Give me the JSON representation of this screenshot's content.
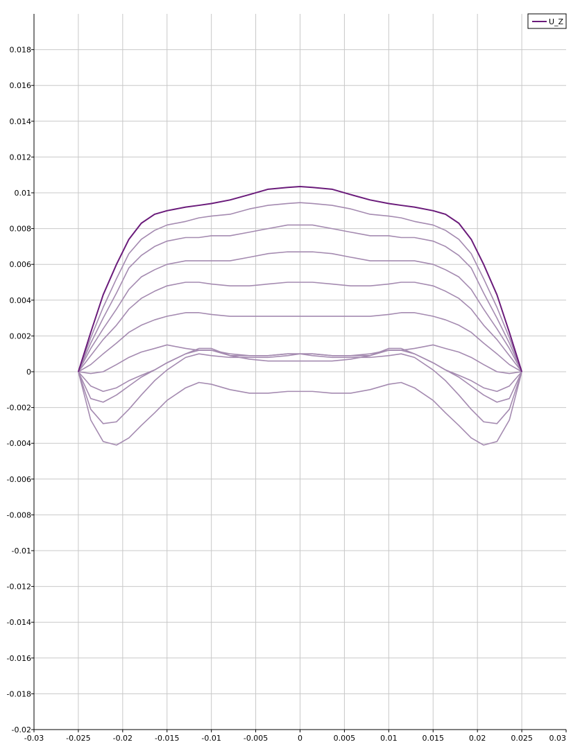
{
  "chart_data": {
    "type": "line",
    "title": "",
    "xlabel": "",
    "ylabel": "",
    "xlim": [
      -0.03,
      0.03
    ],
    "ylim": [
      -0.02,
      0.02
    ],
    "grid": true,
    "legend_position": "top-right",
    "legend": [
      "U_Z"
    ],
    "x_ticks": [
      "-0.03",
      "-0.025",
      "-0.02",
      "-0.015",
      "-0.01",
      "-0.005",
      "0",
      "0.005",
      "0.01",
      "0.015",
      "0.02",
      "0.025",
      "0.03"
    ],
    "y_ticks": [
      "-0.02",
      "-0.018",
      "-0.016",
      "-0.014",
      "-0.012",
      "-0.01",
      "-0.008",
      "-0.006",
      "-0.004",
      "-0.002",
      "0",
      "0.002",
      "0.004",
      "0.006",
      "0.008",
      "0.01",
      "0.012",
      "0.014",
      "0.016",
      "0.018"
    ],
    "x": [
      -0.025,
      -0.0236,
      -0.0222,
      -0.0207,
      -0.0193,
      -0.0179,
      -0.0164,
      -0.015,
      -0.0129,
      -0.0114,
      -0.01,
      -0.0079,
      -0.0057,
      -0.0036,
      -0.0014,
      0,
      0.0014,
      0.0036,
      0.0057,
      0.0079,
      0.01,
      0.0114,
      0.0129,
      0.015,
      0.0164,
      0.0179,
      0.0193,
      0.0207,
      0.0222,
      0.0236,
      0.025
    ],
    "series": [
      {
        "name": "U_Z",
        "color": "#6a1b7a",
        "highlight": true,
        "values": [
          0,
          0.0022,
          0.0043,
          0.006,
          0.0074,
          0.0083,
          0.0088,
          0.009,
          0.0092,
          0.0093,
          0.0094,
          0.0096,
          0.0099,
          0.0102,
          0.0103,
          0.01035,
          0.0103,
          0.0102,
          0.0099,
          0.0096,
          0.0094,
          0.0093,
          0.0092,
          0.009,
          0.0088,
          0.0083,
          0.0074,
          0.006,
          0.0043,
          0.0022,
          0
        ]
      },
      {
        "color": "#a48ab0",
        "values": [
          0,
          0.0019,
          0.0036,
          0.0052,
          0.0066,
          0.0074,
          0.0079,
          0.0082,
          0.0084,
          0.0086,
          0.0087,
          0.0088,
          0.0091,
          0.0093,
          0.0094,
          0.00945,
          0.0094,
          0.0093,
          0.0091,
          0.0088,
          0.0087,
          0.0086,
          0.0084,
          0.0082,
          0.0079,
          0.0074,
          0.0066,
          0.0052,
          0.0036,
          0.0019,
          0
        ]
      },
      {
        "color": "#a48ab0",
        "values": [
          0,
          0.0016,
          0.003,
          0.0044,
          0.0058,
          0.0065,
          0.007,
          0.0073,
          0.0075,
          0.0075,
          0.0076,
          0.0076,
          0.0078,
          0.008,
          0.0082,
          0.0082,
          0.0082,
          0.008,
          0.0078,
          0.0076,
          0.0076,
          0.0075,
          0.0075,
          0.0073,
          0.007,
          0.0065,
          0.0058,
          0.0044,
          0.003,
          0.0016,
          0
        ]
      },
      {
        "color": "#a48ab0",
        "values": [
          0,
          0.0013,
          0.0024,
          0.0035,
          0.0046,
          0.0053,
          0.0057,
          0.006,
          0.0062,
          0.0062,
          0.0062,
          0.0062,
          0.0064,
          0.0066,
          0.0067,
          0.0067,
          0.0067,
          0.0066,
          0.0064,
          0.0062,
          0.0062,
          0.0062,
          0.0062,
          0.006,
          0.0057,
          0.0053,
          0.0046,
          0.0035,
          0.0024,
          0.0013,
          0
        ]
      },
      {
        "color": "#a48ab0",
        "values": [
          0,
          0.0009,
          0.0018,
          0.0026,
          0.0035,
          0.0041,
          0.0045,
          0.0048,
          0.005,
          0.005,
          0.0049,
          0.0048,
          0.0048,
          0.0049,
          0.005,
          0.005,
          0.005,
          0.0049,
          0.0048,
          0.0048,
          0.0049,
          0.005,
          0.005,
          0.0048,
          0.0045,
          0.0041,
          0.0035,
          0.0026,
          0.0018,
          0.0009,
          0
        ]
      },
      {
        "color": "#a48ab0",
        "values": [
          0,
          0.0004,
          0.001,
          0.0016,
          0.0022,
          0.0026,
          0.0029,
          0.0031,
          0.0033,
          0.0033,
          0.0032,
          0.0031,
          0.0031,
          0.0031,
          0.0031,
          0.0031,
          0.0031,
          0.0031,
          0.0031,
          0.0031,
          0.0032,
          0.0033,
          0.0033,
          0.0031,
          0.0029,
          0.0026,
          0.0022,
          0.0016,
          0.001,
          0.0004,
          0
        ]
      },
      {
        "color": "#a48ab0",
        "values": [
          0,
          -0.0001,
          0.0,
          0.0004,
          0.0008,
          0.0011,
          0.0013,
          0.0015,
          0.0013,
          0.0012,
          0.0012,
          0.001,
          0.0009,
          0.0009,
          0.001,
          0.001,
          0.001,
          0.0009,
          0.0009,
          0.001,
          0.0012,
          0.0012,
          0.0013,
          0.0015,
          0.0013,
          0.0011,
          0.0008,
          0.0004,
          0.0,
          -0.0001,
          0
        ]
      },
      {
        "color": "#a48ab0",
        "values": [
          0,
          -0.0008,
          -0.0011,
          -0.0009,
          -0.0005,
          -0.0002,
          0.0001,
          0.0005,
          0.001,
          0.0013,
          0.0013,
          0.0009,
          0.0007,
          0.0006,
          0.0006,
          0.0006,
          0.0006,
          0.0006,
          0.0007,
          0.0009,
          0.0013,
          0.0013,
          0.001,
          0.0005,
          0.0001,
          -0.0002,
          -0.0005,
          -0.0009,
          -0.0011,
          -0.0008,
          0
        ]
      },
      {
        "color": "#a48ab0",
        "values": [
          0,
          -0.0015,
          -0.0017,
          -0.0013,
          -0.0008,
          -0.0003,
          0.0001,
          0.0005,
          0.001,
          0.0012,
          0.0012,
          0.0009,
          0.0009,
          0.0009,
          0.001,
          0.001,
          0.001,
          0.0009,
          0.0009,
          0.0009,
          0.0012,
          0.0012,
          0.001,
          0.0005,
          0.0001,
          -0.0003,
          -0.0008,
          -0.0013,
          -0.0017,
          -0.0015,
          0
        ]
      },
      {
        "color": "#a48ab0",
        "values": [
          0,
          -0.0021,
          -0.0029,
          -0.0028,
          -0.0021,
          -0.0013,
          -0.0005,
          0.0001,
          0.0008,
          0.001,
          0.0009,
          0.0008,
          0.0008,
          0.0008,
          0.0009,
          0.001,
          0.0009,
          0.0008,
          0.0008,
          0.0008,
          0.0009,
          0.001,
          0.0008,
          0.0001,
          -0.0005,
          -0.0013,
          -0.0021,
          -0.0028,
          -0.0029,
          -0.0021,
          0
        ]
      },
      {
        "color": "#a48ab0",
        "values": [
          0,
          -0.0027,
          -0.0039,
          -0.0041,
          -0.0037,
          -0.003,
          -0.0023,
          -0.0016,
          -0.0009,
          -0.0006,
          -0.0007,
          -0.001,
          -0.0012,
          -0.0012,
          -0.0011,
          -0.0011,
          -0.0011,
          -0.0012,
          -0.0012,
          -0.001,
          -0.0007,
          -0.0006,
          -0.0009,
          -0.0016,
          -0.0023,
          -0.003,
          -0.0037,
          -0.0041,
          -0.0039,
          -0.0027,
          0
        ]
      }
    ]
  }
}
